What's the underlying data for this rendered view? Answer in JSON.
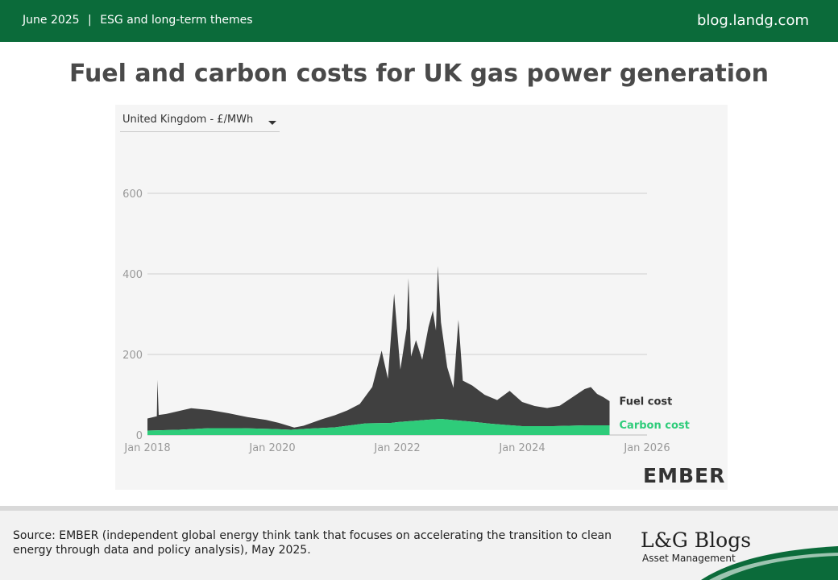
{
  "header": {
    "date": "June 2025",
    "separator": "|",
    "category": "ESG and long-term themes",
    "site": "blog.landg.com"
  },
  "chart_title": "Fuel and carbon costs for UK gas power generation",
  "selector": {
    "value": "United Kingdom - £/MWh"
  },
  "brand_logo": "EMBER",
  "chart_data": {
    "type": "area",
    "title": "Fuel and carbon costs for UK gas power generation",
    "unit": "£/MWh",
    "x_ticks": [
      "Jan 2018",
      "Jan 2020",
      "Jan 2022",
      "Jan 2024",
      "Jan 2026"
    ],
    "y_ticks": [
      0,
      200,
      400,
      600
    ],
    "ylim": [
      0,
      600
    ],
    "xlim": [
      2018.0,
      2026.0
    ],
    "stacked": true,
    "grid": true,
    "legend": "inline-right",
    "series": [
      {
        "name": "Carbon cost",
        "color": "#2ecc7a",
        "points": [
          [
            2018.0,
            11
          ],
          [
            2018.5,
            13
          ],
          [
            2019.0,
            17
          ],
          [
            2019.5,
            17
          ],
          [
            2020.0,
            15
          ],
          [
            2020.3,
            13
          ],
          [
            2020.6,
            16
          ],
          [
            2021.0,
            19
          ],
          [
            2021.5,
            29
          ],
          [
            2021.9,
            30
          ],
          [
            2022.0,
            32
          ],
          [
            2022.5,
            38
          ],
          [
            2022.7,
            40
          ],
          [
            2022.9,
            37
          ],
          [
            2023.2,
            33
          ],
          [
            2023.5,
            28
          ],
          [
            2024.0,
            22
          ],
          [
            2024.5,
            22
          ],
          [
            2025.0,
            24
          ],
          [
            2025.4,
            24
          ]
        ]
      },
      {
        "name": "Fuel cost",
        "color": "#404040",
        "points": [
          [
            2018.0,
            30
          ],
          [
            2018.15,
            35
          ],
          [
            2018.16,
            125
          ],
          [
            2018.18,
            38
          ],
          [
            2018.3,
            40
          ],
          [
            2018.7,
            52
          ],
          [
            2019.0,
            45
          ],
          [
            2019.3,
            37
          ],
          [
            2019.6,
            28
          ],
          [
            2019.9,
            22
          ],
          [
            2020.1,
            16
          ],
          [
            2020.35,
            5
          ],
          [
            2020.5,
            8
          ],
          [
            2020.8,
            22
          ],
          [
            2021.0,
            30
          ],
          [
            2021.2,
            38
          ],
          [
            2021.4,
            50
          ],
          [
            2021.6,
            90
          ],
          [
            2021.75,
            180
          ],
          [
            2021.85,
            110
          ],
          [
            2021.95,
            320
          ],
          [
            2022.05,
            130
          ],
          [
            2022.15,
            230
          ],
          [
            2022.18,
            355
          ],
          [
            2022.22,
            160
          ],
          [
            2022.3,
            200
          ],
          [
            2022.4,
            150
          ],
          [
            2022.5,
            230
          ],
          [
            2022.57,
            270
          ],
          [
            2022.62,
            220
          ],
          [
            2022.65,
            380
          ],
          [
            2022.7,
            240
          ],
          [
            2022.8,
            130
          ],
          [
            2022.9,
            80
          ],
          [
            2022.98,
            250
          ],
          [
            2023.05,
            100
          ],
          [
            2023.2,
            90
          ],
          [
            2023.4,
            70
          ],
          [
            2023.6,
            60
          ],
          [
            2023.8,
            85
          ],
          [
            2024.0,
            60
          ],
          [
            2024.2,
            50
          ],
          [
            2024.4,
            45
          ],
          [
            2024.6,
            50
          ],
          [
            2024.8,
            70
          ],
          [
            2025.0,
            90
          ],
          [
            2025.1,
            95
          ],
          [
            2025.2,
            78
          ],
          [
            2025.3,
            70
          ],
          [
            2025.4,
            60
          ]
        ]
      }
    ]
  },
  "footer": {
    "source": "Source: EMBER (independent global energy think tank that focuses on accelerating the transition to clean energy through data and policy analysis), May 2025.",
    "brand": "L&G Blogs",
    "brand_sub": "Asset Management"
  },
  "colors": {
    "header_green": "#0b6b3a",
    "carbon": "#2ecc7a",
    "fuel": "#404040"
  }
}
